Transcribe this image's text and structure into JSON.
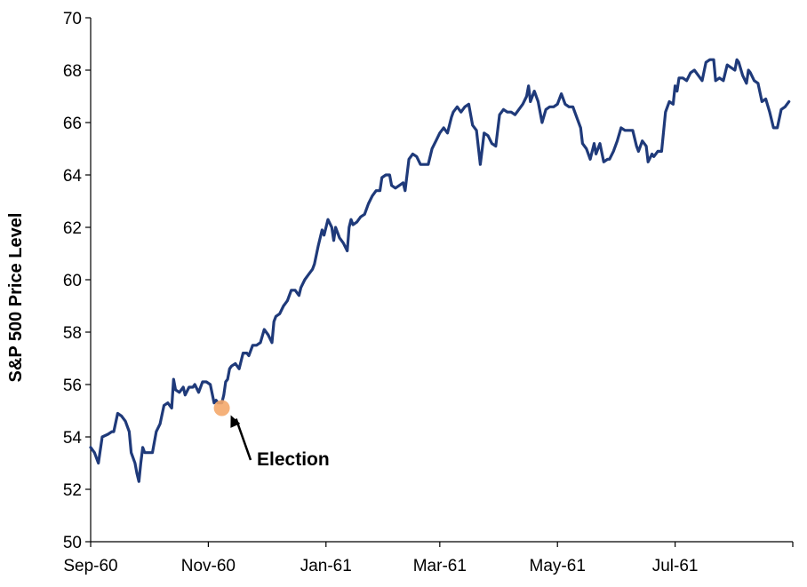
{
  "chart_data": {
    "type": "line",
    "title": "",
    "xlabel": "",
    "ylabel": "S&P 500 Price Level",
    "ylim": [
      50,
      70
    ],
    "yticks": [
      50,
      52,
      54,
      56,
      58,
      60,
      62,
      64,
      66,
      68,
      70
    ],
    "xlim": [
      "1960-09-01",
      "1961-08-31"
    ],
    "xticks": [
      {
        "label": "Sep-60",
        "date": "1960-09-01"
      },
      {
        "label": "Nov-60",
        "date": "1960-11-01"
      },
      {
        "label": "Jan-61",
        "date": "1961-01-01"
      },
      {
        "label": "Mar-61",
        "date": "1961-03-01"
      },
      {
        "label": "May-61",
        "date": "1961-05-01"
      },
      {
        "label": "Jul-61",
        "date": "1961-07-01"
      }
    ],
    "grid": false,
    "legend": "none",
    "series": [
      {
        "color": "#1f3a7a",
        "points": [
          [
            "1960-09-01",
            53.6
          ],
          [
            "1960-09-02",
            53.5
          ],
          [
            "1960-09-03",
            53.4
          ],
          [
            "1960-09-05",
            53.0
          ],
          [
            "1960-09-07",
            54.0
          ],
          [
            "1960-09-10",
            54.1
          ],
          [
            "1960-09-12",
            54.2
          ],
          [
            "1960-09-13",
            54.2
          ],
          [
            "1960-09-15",
            54.9
          ],
          [
            "1960-09-17",
            54.8
          ],
          [
            "1960-09-19",
            54.6
          ],
          [
            "1960-09-21",
            54.2
          ],
          [
            "1960-09-22",
            53.4
          ],
          [
            "1960-09-24",
            53.0
          ],
          [
            "1960-09-25",
            52.6
          ],
          [
            "1960-09-26",
            52.3
          ],
          [
            "1960-09-27",
            53.0
          ],
          [
            "1960-09-28",
            53.6
          ],
          [
            "1960-09-29",
            53.4
          ],
          [
            "1960-10-01",
            53.4
          ],
          [
            "1960-10-03",
            53.4
          ],
          [
            "1960-10-05",
            54.2
          ],
          [
            "1960-10-07",
            54.5
          ],
          [
            "1960-10-09",
            55.2
          ],
          [
            "1960-10-11",
            55.3
          ],
          [
            "1960-10-13",
            55.1
          ],
          [
            "1960-10-14",
            56.2
          ],
          [
            "1960-10-15",
            55.8
          ],
          [
            "1960-10-17",
            55.7
          ],
          [
            "1960-10-19",
            55.9
          ],
          [
            "1960-10-20",
            55.6
          ],
          [
            "1960-10-22",
            55.9
          ],
          [
            "1960-10-24",
            55.9
          ],
          [
            "1960-10-25",
            56.0
          ],
          [
            "1960-10-27",
            55.7
          ],
          [
            "1960-10-29",
            56.1
          ],
          [
            "1960-10-31",
            56.1
          ],
          [
            "1960-11-02",
            56.0
          ],
          [
            "1960-11-04",
            55.3
          ],
          [
            "1960-11-05",
            55.4
          ],
          [
            "1960-11-06",
            55.3
          ],
          [
            "1960-11-08",
            55.3
          ],
          [
            "1960-11-09",
            55.6
          ],
          [
            "1960-11-10",
            56.1
          ],
          [
            "1960-11-11",
            56.2
          ],
          [
            "1960-11-12",
            56.6
          ],
          [
            "1960-11-13",
            56.7
          ],
          [
            "1960-11-15",
            56.8
          ],
          [
            "1960-11-17",
            56.6
          ],
          [
            "1960-11-19",
            57.2
          ],
          [
            "1960-11-21",
            57.2
          ],
          [
            "1960-11-22",
            57.1
          ],
          [
            "1960-11-24",
            57.5
          ],
          [
            "1960-11-26",
            57.5
          ],
          [
            "1960-11-28",
            57.6
          ],
          [
            "1960-11-30",
            58.1
          ],
          [
            "1960-12-02",
            57.9
          ],
          [
            "1960-12-04",
            57.6
          ],
          [
            "1960-12-05",
            58.4
          ],
          [
            "1960-12-06",
            58.6
          ],
          [
            "1960-12-08",
            58.7
          ],
          [
            "1960-12-10",
            59.0
          ],
          [
            "1960-12-12",
            59.2
          ],
          [
            "1960-12-14",
            59.6
          ],
          [
            "1960-12-16",
            59.6
          ],
          [
            "1960-12-18",
            59.4
          ],
          [
            "1960-12-19",
            59.7
          ],
          [
            "1960-12-21",
            60.0
          ],
          [
            "1960-12-23",
            60.2
          ],
          [
            "1960-12-25",
            60.4
          ],
          [
            "1960-12-26",
            60.6
          ],
          [
            "1960-12-28",
            61.3
          ],
          [
            "1960-12-30",
            61.9
          ],
          [
            "1960-12-31",
            61.7
          ],
          [
            "1961-01-02",
            62.3
          ],
          [
            "1961-01-04",
            62.0
          ],
          [
            "1961-01-05",
            61.5
          ],
          [
            "1961-01-06",
            62.0
          ],
          [
            "1961-01-08",
            61.6
          ],
          [
            "1961-01-10",
            61.4
          ],
          [
            "1961-01-12",
            61.1
          ],
          [
            "1961-01-13",
            62.0
          ],
          [
            "1961-01-14",
            62.3
          ],
          [
            "1961-01-15",
            62.1
          ],
          [
            "1961-01-17",
            62.2
          ],
          [
            "1961-01-19",
            62.4
          ],
          [
            "1961-01-21",
            62.5
          ],
          [
            "1961-01-23",
            62.9
          ],
          [
            "1961-01-25",
            63.2
          ],
          [
            "1961-01-27",
            63.4
          ],
          [
            "1961-01-29",
            63.4
          ],
          [
            "1961-01-30",
            63.9
          ],
          [
            "1961-02-01",
            64.0
          ],
          [
            "1961-02-03",
            64.0
          ],
          [
            "1961-02-04",
            63.6
          ],
          [
            "1961-02-06",
            63.5
          ],
          [
            "1961-02-08",
            63.6
          ],
          [
            "1961-02-10",
            63.7
          ],
          [
            "1961-02-11",
            63.4
          ],
          [
            "1961-02-13",
            64.6
          ],
          [
            "1961-02-15",
            64.8
          ],
          [
            "1961-02-17",
            64.7
          ],
          [
            "1961-02-19",
            64.4
          ],
          [
            "1961-02-21",
            64.4
          ],
          [
            "1961-02-23",
            64.4
          ],
          [
            "1961-02-25",
            65.0
          ],
          [
            "1961-02-27",
            65.3
          ],
          [
            "1961-03-01",
            65.6
          ],
          [
            "1961-03-03",
            65.8
          ],
          [
            "1961-03-05",
            65.6
          ],
          [
            "1961-03-07",
            66.2
          ],
          [
            "1961-03-08",
            66.4
          ],
          [
            "1961-03-10",
            66.6
          ],
          [
            "1961-03-12",
            66.4
          ],
          [
            "1961-03-14",
            66.6
          ],
          [
            "1961-03-16",
            66.7
          ],
          [
            "1961-03-18",
            65.9
          ],
          [
            "1961-03-20",
            65.7
          ],
          [
            "1961-03-22",
            64.4
          ],
          [
            "1961-03-23",
            65.0
          ],
          [
            "1961-03-24",
            65.6
          ],
          [
            "1961-03-26",
            65.5
          ],
          [
            "1961-03-28",
            65.2
          ],
          [
            "1961-03-30",
            65.1
          ],
          [
            "1961-04-01",
            66.3
          ],
          [
            "1961-04-03",
            66.5
          ],
          [
            "1961-04-05",
            66.4
          ],
          [
            "1961-04-07",
            66.4
          ],
          [
            "1961-04-09",
            66.3
          ],
          [
            "1961-04-11",
            66.5
          ],
          [
            "1961-04-13",
            66.7
          ],
          [
            "1961-04-15",
            67.0
          ],
          [
            "1961-04-16",
            67.4
          ],
          [
            "1961-04-17",
            66.8
          ],
          [
            "1961-04-19",
            67.2
          ],
          [
            "1961-04-21",
            66.8
          ],
          [
            "1961-04-23",
            66.0
          ],
          [
            "1961-04-25",
            66.5
          ],
          [
            "1961-04-27",
            66.6
          ],
          [
            "1961-04-29",
            66.6
          ],
          [
            "1961-05-01",
            66.7
          ],
          [
            "1961-05-03",
            67.1
          ],
          [
            "1961-05-05",
            66.7
          ],
          [
            "1961-05-07",
            66.6
          ],
          [
            "1961-05-09",
            66.6
          ],
          [
            "1961-05-11",
            66.2
          ],
          [
            "1961-05-13",
            65.8
          ],
          [
            "1961-05-14",
            65.2
          ],
          [
            "1961-05-16",
            65.0
          ],
          [
            "1961-05-18",
            64.6
          ],
          [
            "1961-05-20",
            65.2
          ],
          [
            "1961-05-21",
            64.8
          ],
          [
            "1961-05-23",
            65.2
          ],
          [
            "1961-05-25",
            64.5
          ],
          [
            "1961-05-27",
            64.6
          ],
          [
            "1961-05-28",
            64.6
          ],
          [
            "1961-05-30",
            64.9
          ],
          [
            "1961-06-01",
            65.3
          ],
          [
            "1961-06-03",
            65.8
          ],
          [
            "1961-06-05",
            65.7
          ],
          [
            "1961-06-07",
            65.7
          ],
          [
            "1961-06-09",
            65.7
          ],
          [
            "1961-06-11",
            65.1
          ],
          [
            "1961-06-12",
            64.9
          ],
          [
            "1961-06-14",
            65.3
          ],
          [
            "1961-06-16",
            65.1
          ],
          [
            "1961-06-17",
            64.5
          ],
          [
            "1961-06-19",
            64.8
          ],
          [
            "1961-06-20",
            64.7
          ],
          [
            "1961-06-22",
            64.9
          ],
          [
            "1961-06-24",
            64.9
          ],
          [
            "1961-06-26",
            66.4
          ],
          [
            "1961-06-28",
            66.8
          ],
          [
            "1961-06-30",
            66.7
          ],
          [
            "1961-07-01",
            67.4
          ],
          [
            "1961-07-02",
            67.2
          ],
          [
            "1961-07-03",
            67.7
          ],
          [
            "1961-07-05",
            67.7
          ],
          [
            "1961-07-07",
            67.6
          ],
          [
            "1961-07-09",
            67.9
          ],
          [
            "1961-07-11",
            68.0
          ],
          [
            "1961-07-13",
            67.8
          ],
          [
            "1961-07-15",
            67.6
          ],
          [
            "1961-07-17",
            68.3
          ],
          [
            "1961-07-19",
            68.4
          ],
          [
            "1961-07-21",
            68.4
          ],
          [
            "1961-07-22",
            67.6
          ],
          [
            "1961-07-24",
            67.7
          ],
          [
            "1961-07-26",
            67.6
          ],
          [
            "1961-07-28",
            68.2
          ],
          [
            "1961-07-30",
            68.1
          ],
          [
            "1961-08-01",
            68.0
          ],
          [
            "1961-08-02",
            68.4
          ],
          [
            "1961-08-03",
            68.3
          ],
          [
            "1961-08-05",
            67.8
          ],
          [
            "1961-08-07",
            67.5
          ],
          [
            "1961-08-08",
            68.0
          ],
          [
            "1961-08-09",
            67.9
          ],
          [
            "1961-08-11",
            67.6
          ],
          [
            "1961-08-13",
            67.5
          ],
          [
            "1961-08-15",
            66.8
          ],
          [
            "1961-08-17",
            66.9
          ],
          [
            "1961-08-19",
            66.4
          ],
          [
            "1961-08-21",
            65.8
          ],
          [
            "1961-08-23",
            65.8
          ],
          [
            "1961-08-25",
            66.5
          ],
          [
            "1961-08-27",
            66.6
          ],
          [
            "1961-08-29",
            66.8
          ]
        ]
      }
    ],
    "annotations": [
      {
        "text": "Election",
        "marker_date": "1960-11-08",
        "marker_value": 55.1,
        "marker_color": "#f4a86b"
      }
    ]
  }
}
